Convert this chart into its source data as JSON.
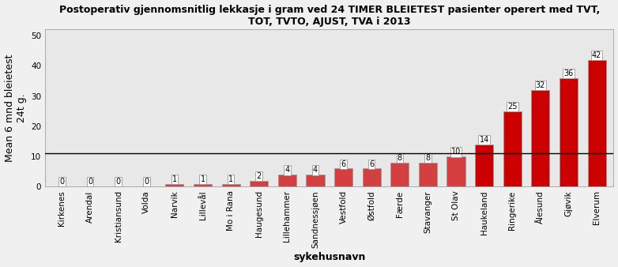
{
  "title": "Postoperativ gjennomsnitlig lekkasje i gram ved 24 TIMER BLEIETEST pasienter operert med TVT,\nTOT, TVTO, AJUST, TVA i 2013",
  "xlabel": "sykehusnavn",
  "ylabel": "Mean 6 mnd bleietest\n24t g.",
  "categories": [
    "Kirkenes",
    "Arendal",
    "Kristiansund",
    "Volda",
    "Narvik",
    "Lillevål",
    "Mo i Rana",
    "Haugesund",
    "Lillehammer",
    "Sandnessjøen",
    "Vestfold",
    "Østfold",
    "Færde",
    "Stavanger",
    "St Olav",
    "Haukeland",
    "Ringerike",
    "Ålesund",
    "Gjøvik",
    "Elverum"
  ],
  "values": [
    0,
    0,
    0,
    0,
    1,
    1,
    1,
    2,
    4,
    4,
    6,
    6,
    8,
    8,
    10,
    14,
    25,
    32,
    36,
    42
  ],
  "reference_line": 11,
  "ylim": [
    0,
    52
  ],
  "yticks": [
    0,
    10,
    20,
    30,
    40,
    50
  ],
  "bar_color_below": "#d44040",
  "bar_color_above": "#cc0000",
  "bar_edge_color": "#999999",
  "figure_facecolor": "#f0f0f0",
  "axes_facecolor": "#e8e8e8",
  "label_box_facecolor": "white",
  "label_box_edgecolor": "#999999",
  "ref_line_color": "black",
  "title_fontsize": 9,
  "axis_label_fontsize": 9,
  "tick_label_fontsize": 7.5,
  "bar_label_fontsize": 7
}
